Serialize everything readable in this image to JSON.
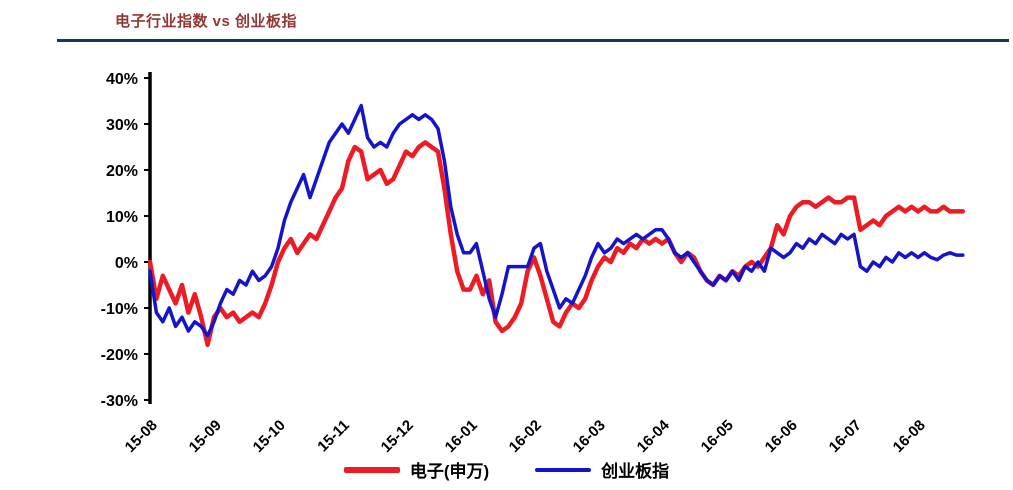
{
  "header": {
    "title": "电子行业指数 vs 创业板指",
    "title_color": "#943634",
    "rule_color": "#17365d"
  },
  "chart_data": {
    "type": "line",
    "title": "电子行业指数 vs 创业板指",
    "xlabel": "",
    "ylabel": "",
    "ylim": [
      -30,
      40
    ],
    "y_ticks": [
      40,
      30,
      20,
      10,
      0,
      -10,
      -20,
      -30
    ],
    "y_tick_suffix": "%",
    "x_tick_labels": [
      "15-08",
      "15-09",
      "15-10",
      "15-11",
      "15-12",
      "16-01",
      "16-02",
      "16-03",
      "16-04",
      "16-05",
      "16-06",
      "16-07",
      "16-08"
    ],
    "points_per_month": 10,
    "grid": false,
    "legend_position": "bottom",
    "series": [
      {
        "name": "电子(申万)",
        "color": "#ed1c24",
        "width": 4.5,
        "values": [
          0,
          -8,
          -3,
          -6,
          -9,
          -5,
          -11,
          -7,
          -12,
          -18,
          -12,
          -10,
          -12,
          -11,
          -13,
          -12,
          -11,
          -12,
          -9,
          -5,
          0,
          3,
          5,
          2,
          4,
          6,
          5,
          8,
          11,
          14,
          16,
          22,
          25,
          24,
          18,
          19,
          20,
          17,
          18,
          21,
          24,
          23,
          25,
          26,
          25,
          24,
          16,
          6,
          -2,
          -6,
          -6,
          -3,
          -7,
          -4,
          -13,
          -15,
          -14,
          -12,
          -9,
          -2,
          1,
          -3,
          -8,
          -13,
          -14,
          -11,
          -9,
          -10,
          -8,
          -4,
          -1,
          1,
          0,
          3,
          2,
          4,
          3,
          5,
          4,
          5,
          4,
          5,
          2,
          0,
          2,
          1,
          -2,
          -4,
          -5,
          -3,
          -4,
          -2,
          -3,
          -1,
          0,
          -1,
          1,
          3,
          8,
          6,
          10,
          12,
          13,
          13,
          12,
          13,
          14,
          13,
          13,
          14,
          14,
          7,
          8,
          9,
          8,
          10,
          11,
          12,
          11,
          12,
          11,
          12,
          11,
          11,
          12,
          11,
          11,
          11
        ]
      },
      {
        "name": "创业板指",
        "color": "#1414cc",
        "width": 3.5,
        "values": [
          -2,
          -11,
          -13,
          -10,
          -14,
          -12,
          -15,
          -13,
          -14,
          -16,
          -13,
          -9,
          -6,
          -7,
          -4,
          -5,
          -2,
          -4,
          -3,
          -1,
          3,
          9,
          13,
          16,
          19,
          14,
          18,
          22,
          26,
          28,
          30,
          28,
          31,
          34,
          27,
          25,
          26,
          25,
          28,
          30,
          31,
          32,
          31,
          32,
          31,
          29,
          22,
          12,
          6,
          2,
          2,
          4,
          -2,
          -8,
          -12,
          -7,
          -1,
          -1,
          -1,
          -1,
          3,
          4,
          -2,
          -6,
          -10,
          -8,
          -9,
          -6,
          -3,
          1,
          4,
          2,
          3,
          5,
          4,
          5,
          6,
          5,
          6,
          7,
          7,
          5,
          2,
          1,
          2,
          0,
          -2,
          -4,
          -5,
          -3,
          -4,
          -2,
          -4,
          -1,
          -2,
          0,
          -2,
          3,
          2,
          1,
          2,
          4,
          3,
          5,
          4,
          6,
          5,
          4,
          6,
          5,
          6,
          -1,
          -2,
          0,
          -1,
          1,
          0,
          2,
          1,
          2,
          1,
          2,
          1,
          0.5,
          1.5,
          2,
          1.5,
          1.5
        ]
      }
    ]
  }
}
